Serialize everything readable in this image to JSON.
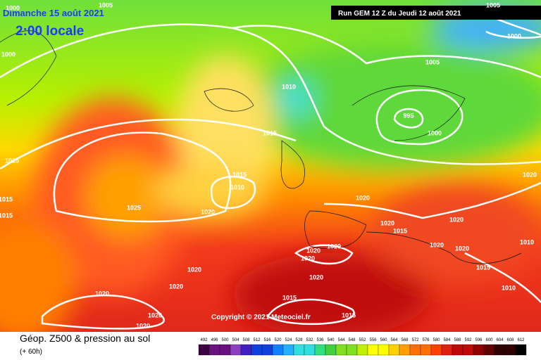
{
  "header": {
    "date": "Dimanche 15 août 2021",
    "time": "2:00 locale",
    "run": "Run GEM 12 Z du Jeudi 12 août 2021"
  },
  "copyright": "Copyright © 2021 Meteociel.fr",
  "legend": {
    "title": "Géop. Z500 & pression au sol",
    "lead": "(+ 60h)",
    "scale": [
      492,
      496,
      500,
      504,
      508,
      512,
      516,
      520,
      524,
      528,
      532,
      536,
      540,
      544,
      548,
      552,
      556,
      560,
      564,
      568,
      572,
      576,
      580,
      584,
      588,
      592,
      596,
      600,
      604,
      608,
      612
    ]
  },
  "isobars": [
    {
      "label": "1000"
    },
    {
      "label": "1005"
    },
    {
      "label": "1000"
    },
    {
      "label": "1010"
    },
    {
      "label": "1015"
    },
    {
      "label": "1015"
    },
    {
      "label": "1010"
    },
    {
      "label": "1025"
    },
    {
      "label": "1020"
    },
    {
      "label": "1015"
    },
    {
      "label": "1015"
    },
    {
      "label": "1015"
    },
    {
      "label": "1005"
    },
    {
      "label": "995"
    },
    {
      "label": "1000"
    },
    {
      "label": "1000"
    },
    {
      "label": "1020"
    },
    {
      "label": "1020"
    },
    {
      "label": "1020"
    },
    {
      "label": "1015"
    },
    {
      "label": "1020"
    },
    {
      "label": "1020"
    },
    {
      "label": "1020"
    },
    {
      "label": "1010"
    },
    {
      "label": "1015"
    },
    {
      "label": "1010"
    },
    {
      "label": "1020"
    },
    {
      "label": "1020"
    },
    {
      "label": "1020"
    },
    {
      "label": "1020"
    },
    {
      "label": "1020"
    },
    {
      "label": "1020"
    },
    {
      "label": "1020"
    },
    {
      "label": "1020"
    },
    {
      "label": "1015"
    },
    {
      "label": "1020"
    },
    {
      "label": "1015"
    },
    {
      "label": "1005"
    }
  ]
}
